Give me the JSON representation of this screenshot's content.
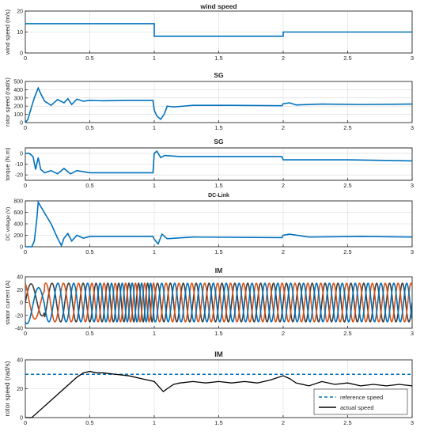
{
  "colors": {
    "blue": "#0072BD",
    "orange": "#D95319",
    "dark": "#404040",
    "black": "#000000",
    "axis": "#262626",
    "grid": "#D9D9D9"
  },
  "chart_data": [
    {
      "type": "line",
      "title": "wind speed",
      "xlabel": "",
      "ylabel": "wind speed (m/s)",
      "xlim": [
        0,
        3
      ],
      "ylim": [
        0,
        20
      ],
      "xticks": [
        "0",
        "0.5",
        "1",
        "1.5",
        "2",
        "2.5",
        "3"
      ],
      "yticks": [
        "0",
        "10",
        "20"
      ],
      "grid": true,
      "series": [
        {
          "color": "#0072BD",
          "x": [
            0,
            1,
            1,
            2,
            2,
            3
          ],
          "y": [
            14,
            14,
            8,
            8,
            10,
            10
          ]
        }
      ]
    },
    {
      "type": "line",
      "title": "SG",
      "xlabel": "",
      "ylabel": "rotor speed (rad/s)",
      "xlim": [
        0,
        3
      ],
      "ylim": [
        0,
        500
      ],
      "xticks": [
        "0",
        "0.5",
        "1",
        "1.5",
        "2",
        "2.5",
        "3"
      ],
      "yticks": [
        "0",
        "100",
        "200",
        "300",
        "400",
        "500"
      ],
      "grid": true,
      "series": [
        {
          "color": "#0072BD",
          "x": [
            0,
            0.02,
            0.05,
            0.07,
            0.1,
            0.12,
            0.15,
            0.2,
            0.25,
            0.3,
            0.33,
            0.36,
            0.4,
            0.45,
            0.5,
            0.6,
            0.8,
            0.99,
            1.0,
            1.02,
            1.05,
            1.08,
            1.1,
            1.15,
            1.3,
            1.6,
            1.99,
            2.0,
            2.05,
            2.1,
            2.3,
            2.6,
            3.0
          ],
          "y": [
            0,
            40,
            200,
            300,
            420,
            350,
            260,
            210,
            280,
            240,
            290,
            220,
            285,
            260,
            270,
            265,
            270,
            270,
            150,
            80,
            40,
            110,
            200,
            190,
            210,
            210,
            205,
            230,
            240,
            215,
            225,
            220,
            225
          ]
        }
      ]
    },
    {
      "type": "line",
      "title": "SG",
      "xlabel": "",
      "ylabel": "torque (N.m)",
      "xlim": [
        0,
        3
      ],
      "ylim": [
        -25,
        5
      ],
      "xticks": [
        "0",
        "0.5",
        "1",
        "1.5",
        "2",
        "2.5",
        "3"
      ],
      "yticks": [
        "-20",
        "-10",
        "0"
      ],
      "grid": true,
      "series": [
        {
          "color": "#0072BD",
          "x": [
            0,
            0.03,
            0.06,
            0.08,
            0.1,
            0.12,
            0.15,
            0.2,
            0.25,
            0.3,
            0.35,
            0.4,
            0.5,
            0.7,
            0.99,
            1.0,
            1.02,
            1.05,
            1.08,
            1.2,
            1.5,
            1.99,
            2.0,
            2.1,
            2.5,
            3.0
          ],
          "y": [
            0,
            0,
            -3,
            -15,
            -4,
            -15,
            -18,
            -16,
            -19,
            -14,
            -19,
            -16,
            -18,
            -18,
            -18,
            0,
            2,
            -4,
            -2,
            -3,
            -3,
            -3,
            -6,
            -6,
            -6,
            -7
          ]
        }
      ]
    },
    {
      "type": "line",
      "title": "DC-Link",
      "xlabel": "",
      "ylabel": "DC voltage (V)",
      "xlim": [
        0,
        3
      ],
      "ylim": [
        0,
        800
      ],
      "xticks": [
        "0",
        "0.5",
        "1",
        "1.5",
        "2",
        "2.5",
        "3"
      ],
      "yticks": [
        "0",
        "200",
        "400",
        "600",
        "800"
      ],
      "grid": true,
      "series": [
        {
          "color": "#0072BD",
          "x": [
            0,
            0.05,
            0.07,
            0.09,
            0.1,
            0.12,
            0.2,
            0.25,
            0.28,
            0.3,
            0.33,
            0.36,
            0.4,
            0.45,
            0.5,
            0.7,
            0.99,
            1.0,
            1.03,
            1.06,
            1.1,
            1.3,
            1.99,
            2.0,
            2.05,
            2.2,
            2.6,
            3.0
          ],
          "y": [
            0,
            0,
            100,
            500,
            780,
            700,
            400,
            150,
            20,
            150,
            230,
            100,
            200,
            150,
            180,
            180,
            180,
            130,
            50,
            220,
            140,
            170,
            160,
            200,
            220,
            170,
            180,
            170
          ]
        }
      ]
    },
    {
      "type": "line",
      "title": "IM",
      "xlabel": "",
      "ylabel": "stator current (A)",
      "xlim": [
        0,
        3
      ],
      "ylim": [
        -40,
        40
      ],
      "xticks": [
        "0",
        "0.5",
        "1",
        "1.5",
        "2",
        "2.5",
        "3"
      ],
      "yticks": [
        "-40",
        "-20",
        "0",
        "20",
        "40"
      ],
      "grid": true,
      "series": [
        {
          "color": "#404040",
          "amplitude": 30,
          "phase_deg": 0
        },
        {
          "color": "#D95319",
          "amplitude": 30,
          "phase_deg": 120
        },
        {
          "color": "#0072BD",
          "amplitude": 30,
          "phase_deg": 240
        }
      ]
    },
    {
      "type": "line",
      "title": "IM",
      "xlabel": "",
      "ylabel": "rotor speed (rad/s)",
      "xlim": [
        0,
        3
      ],
      "ylim": [
        0,
        40
      ],
      "xticks": [
        "0",
        "0.5",
        "1",
        "1.5",
        "2",
        "2.5",
        "3"
      ],
      "yticks": [
        "0",
        "20",
        "40"
      ],
      "grid": true,
      "legend": "bottom-right",
      "series": [
        {
          "name": "reference speed",
          "color": "#0072BD",
          "dashed": true,
          "x": [
            0,
            3
          ],
          "y": [
            30,
            30
          ]
        },
        {
          "name": "actual speed",
          "color": "#000000",
          "x": [
            0,
            0.05,
            0.1,
            0.2,
            0.3,
            0.4,
            0.45,
            0.5,
            0.55,
            0.6,
            0.7,
            0.8,
            0.9,
            1.0,
            1.03,
            1.07,
            1.1,
            1.15,
            1.2,
            1.3,
            1.4,
            1.5,
            1.6,
            1.7,
            1.8,
            1.9,
            2.0,
            2.05,
            2.1,
            2.2,
            2.3,
            2.4,
            2.5,
            2.6,
            2.7,
            2.8,
            2.9,
            3.0
          ],
          "y": [
            0,
            0,
            4,
            12,
            20,
            28,
            31,
            32,
            31,
            31,
            30,
            29,
            27,
            25,
            22,
            18,
            20,
            23,
            24,
            25,
            24,
            25,
            24,
            25,
            24,
            26,
            29,
            27,
            24,
            22,
            25,
            23,
            24,
            22,
            23,
            22,
            23,
            22
          ]
        }
      ]
    }
  ]
}
